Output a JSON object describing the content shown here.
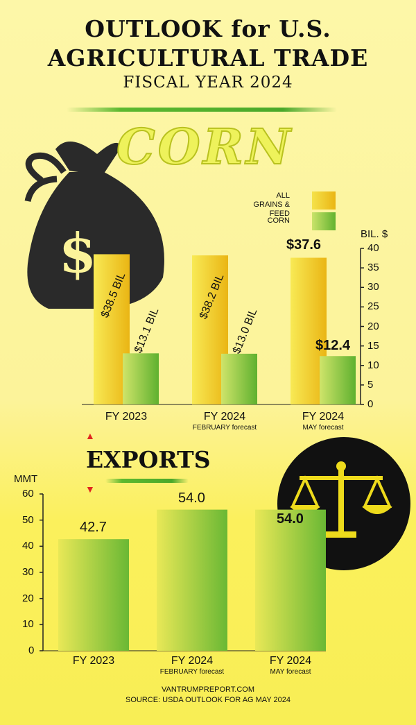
{
  "header": {
    "title_line1": "OUTLOOK for U.S.",
    "title_line2": "AGRICULTURAL TRADE",
    "subtitle": "FISCAL YEAR 2024"
  },
  "sections": {
    "corn": "CORN",
    "exports": "EXPORTS"
  },
  "colors": {
    "all_grains": "#f2d21a",
    "corn": "#8ccc3c",
    "background": "#fcf39a",
    "accent_red": "#e0261f"
  },
  "chart_data": [
    {
      "type": "bar",
      "ylabel": "BIL. $",
      "ylim": [
        0,
        40
      ],
      "yticks": [
        0,
        5,
        10,
        15,
        20,
        25,
        30,
        35,
        40
      ],
      "categories": [
        "FY 2023",
        "FY 2024",
        "FY 2024"
      ],
      "category_notes": [
        "",
        "FEBRUARY forecast",
        "MAY forecast"
      ],
      "legend": [
        "ALL GRAINS & FEED",
        "CORN"
      ],
      "legend_position": "top-right",
      "series": [
        {
          "name": "ALL GRAINS & FEED",
          "values": [
            38.5,
            38.2,
            37.6
          ],
          "data_labels": [
            "$38.5 BIL",
            "$38.2 BIL",
            "$37.6"
          ]
        },
        {
          "name": "CORN",
          "values": [
            13.1,
            13.0,
            12.4
          ],
          "data_labels": [
            "$13.1 BIL",
            "$13.0 BIL",
            "$12.4"
          ]
        }
      ]
    },
    {
      "type": "bar",
      "ylabel": "MMT",
      "ylim": [
        0,
        60
      ],
      "yticks": [
        0,
        10,
        20,
        30,
        40,
        50,
        60
      ],
      "categories": [
        "FY 2023",
        "FY 2024",
        "FY 2024"
      ],
      "category_notes": [
        "",
        "FEBRUARY forecast",
        "MAY forecast"
      ],
      "values": [
        42.7,
        54.0,
        54.0
      ],
      "data_labels": [
        "42.7",
        "54.0",
        "54.0"
      ]
    }
  ],
  "footer": {
    "line1": "VANTRUMPREPORT.COM",
    "line2": "SOURCE: USDA OUTLOOK FOR AG MAY 2024"
  },
  "icons": {
    "money_bag": "money-bag-icon",
    "scales": "scales-of-justice-icon",
    "arrow_up": "▲",
    "arrow_down": "▼"
  }
}
